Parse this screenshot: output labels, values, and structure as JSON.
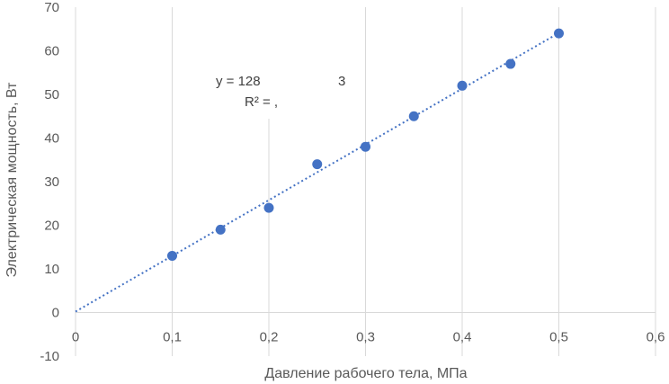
{
  "chart_data": {
    "type": "scatter",
    "xlabel": "Давление рабочего тела, МПа",
    "ylabel": "Электрическая мощность, Вт",
    "xlim": [
      0,
      0.6
    ],
    "ylim": [
      -10,
      70
    ],
    "x_ticks": [
      "0",
      "0,1",
      "0,2",
      "0,3",
      "0,4",
      "0,5",
      "0,6"
    ],
    "y_ticks": [
      "-10",
      "0",
      "10",
      "20",
      "30",
      "40",
      "50",
      "60",
      "70"
    ],
    "grid": {
      "vertical": true,
      "horizontal": false
    },
    "legend": "none",
    "colors": {
      "points": "#4472c4",
      "trendline": "#4472c4",
      "grid": "#d9d9d9"
    },
    "series": [
      {
        "x": [
          0.1,
          0.15,
          0.2,
          0.25,
          0.3,
          0.35,
          0.4,
          0.45,
          0.5
        ],
        "y": [
          13,
          19,
          24,
          34,
          38,
          45,
          52,
          57,
          64
        ]
      }
    ],
    "trendline": {
      "style": "dotted",
      "x_range": [
        0,
        0.5
      ],
      "y_range": [
        0.2,
        64.1
      ],
      "equation_label": "y = 128",
      "equation_suffix": "3",
      "r2_label": "R² = ,"
    }
  }
}
